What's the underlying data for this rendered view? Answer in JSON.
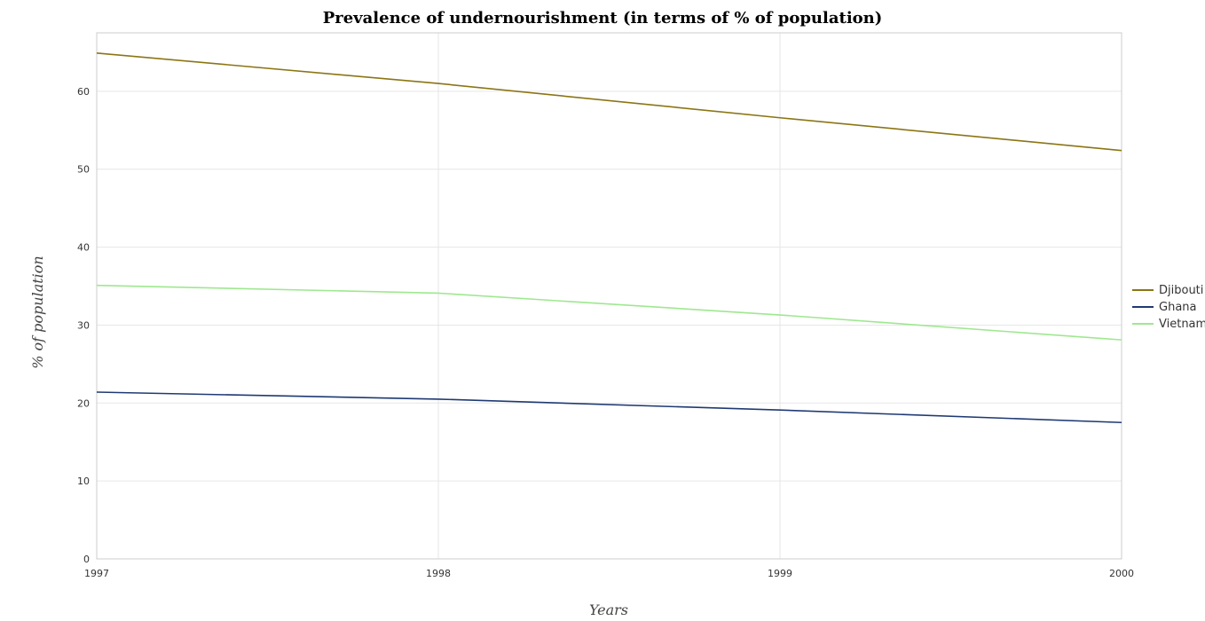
{
  "chart_data": {
    "type": "line",
    "title": "Prevalence of undernourishment (in terms of % of population)",
    "xlabel": "Years",
    "ylabel": "% of population",
    "categories": [
      "1997",
      "1998",
      "1999",
      "2000"
    ],
    "ylim": [
      0,
      67.5
    ],
    "yticks": [
      0,
      10,
      20,
      30,
      40,
      50,
      60
    ],
    "grid": true,
    "legend_position": "right",
    "series": [
      {
        "name": "Djibouti",
        "color": "#8b7514",
        "values": [
          64.9,
          61.0,
          56.6,
          52.4
        ]
      },
      {
        "name": "Ghana",
        "color": "#1f3a73",
        "values": [
          21.4,
          20.5,
          19.1,
          17.5
        ]
      },
      {
        "name": "Vietnam",
        "color": "#9ee88f",
        "values": [
          35.1,
          34.1,
          31.3,
          28.1
        ]
      }
    ]
  }
}
